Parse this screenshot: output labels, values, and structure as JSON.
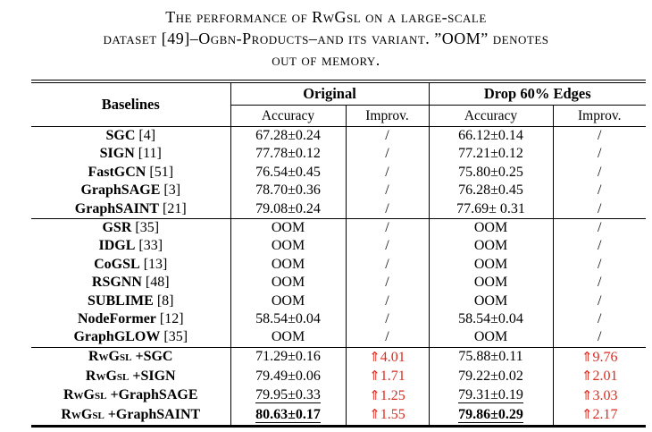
{
  "caption": {
    "line1": "The performance of RwGsl on a large-scale",
    "line2": "dataset [49]–Ogbn-Products–and its variant. ”OOM” denotes",
    "line3": "out of memory."
  },
  "colors": {
    "improvement_red": "#dc2b1f",
    "text": "#000000",
    "background": "#ffffff"
  },
  "table": {
    "header": {
      "baselines": "Baselines",
      "original": "Original",
      "drop_edges": "Drop 60% Edges",
      "accuracy": "Accuracy",
      "improv": "Improv."
    },
    "up_arrow": "⇑",
    "rows": [
      {
        "sc": "",
        "name": "SGC",
        "ref": "[4]",
        "acc1": "67.28±0.24",
        "imp1": "/",
        "acc2": "66.12±0.14",
        "imp2": "/",
        "accStyle": "",
        "groupEnd": false
      },
      {
        "sc": "",
        "name": "SIGN",
        "ref": "[11]",
        "acc1": "77.78±0.12",
        "imp1": "/",
        "acc2": "77.21±0.12",
        "imp2": "/",
        "accStyle": "",
        "groupEnd": false
      },
      {
        "sc": "",
        "name": "FastGCN",
        "ref": "[51]",
        "acc1": "76.54±0.45",
        "imp1": "/",
        "acc2": "75.80±0.25",
        "imp2": "/",
        "accStyle": "",
        "groupEnd": false
      },
      {
        "sc": "",
        "name": "GraphSAGE",
        "ref": "[3]",
        "acc1": "78.70±0.36",
        "imp1": "/",
        "acc2": "76.28±0.45",
        "imp2": "/",
        "accStyle": "",
        "groupEnd": false
      },
      {
        "sc": "",
        "name": "GraphSAINT",
        "ref": "[21]",
        "acc1": "79.08±0.24",
        "imp1": "/",
        "acc2": "77.69± 0.31",
        "imp2": "/",
        "accStyle": "",
        "groupEnd": true
      },
      {
        "sc": "",
        "name": "GSR",
        "ref": "[35]",
        "acc1": "OOM",
        "imp1": "/",
        "acc2": "OOM",
        "imp2": "/",
        "accStyle": "",
        "groupEnd": false
      },
      {
        "sc": "",
        "name": "IDGL",
        "ref": "[33]",
        "acc1": "OOM",
        "imp1": "/",
        "acc2": "OOM",
        "imp2": "/",
        "accStyle": "",
        "groupEnd": false
      },
      {
        "sc": "",
        "name": "CoGSL",
        "ref": "[13]",
        "acc1": "OOM",
        "imp1": "/",
        "acc2": "OOM",
        "imp2": "/",
        "accStyle": "",
        "groupEnd": false
      },
      {
        "sc": "",
        "name": "RSGNN",
        "ref": "[48]",
        "acc1": "OOM",
        "imp1": "/",
        "acc2": "OOM",
        "imp2": "/",
        "accStyle": "",
        "groupEnd": false
      },
      {
        "sc": "",
        "name": "SUBLIME",
        "ref": "[8]",
        "acc1": "OOM",
        "imp1": "/",
        "acc2": "OOM",
        "imp2": "/",
        "accStyle": "",
        "groupEnd": false
      },
      {
        "sc": "",
        "name": "NodeFormer",
        "ref": "[12]",
        "acc1": "58.54±0.04",
        "imp1": "/",
        "acc2": "58.54±0.04",
        "imp2": "/",
        "accStyle": "",
        "groupEnd": false
      },
      {
        "sc": "",
        "name": "GraphGLOW",
        "ref": "[35]",
        "acc1": "OOM",
        "imp1": "/",
        "acc2": "OOM",
        "imp2": "/",
        "accStyle": "",
        "groupEnd": true
      },
      {
        "sc": "RwGsl",
        "name": "+SGC",
        "ref": "",
        "acc1": "71.29±0.16",
        "imp1": "⇑4.01",
        "acc2": "75.88±0.11",
        "imp2": "⇑9.76",
        "accStyle": "",
        "groupEnd": false
      },
      {
        "sc": "RwGsl",
        "name": "+SIGN",
        "ref": "",
        "acc1": "79.49±0.06",
        "imp1": "⇑1.71",
        "acc2": "79.22±0.02",
        "imp2": "⇑2.01",
        "accStyle": "",
        "groupEnd": false
      },
      {
        "sc": "RwGsl",
        "name": "+GraphSAGE",
        "ref": "",
        "acc1": "79.95±0.33",
        "imp1": "⇑1.25",
        "acc2": "79.31±0.19",
        "imp2": "⇑3.03",
        "accStyle": "underline",
        "groupEnd": false
      },
      {
        "sc": "RwGsl",
        "name": "+GraphSAINT",
        "ref": "",
        "acc1": "80.63±0.17",
        "imp1": "⇑1.55",
        "acc2": "79.86±0.29",
        "imp2": "⇑2.17",
        "accStyle": "bold underline",
        "groupEnd": false
      }
    ]
  }
}
